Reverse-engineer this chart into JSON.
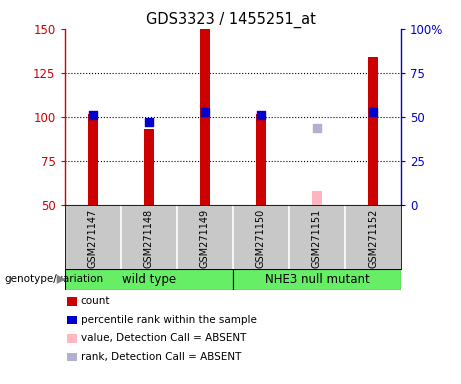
{
  "title": "GDS3323 / 1455251_at",
  "samples": [
    "GSM271147",
    "GSM271148",
    "GSM271149",
    "GSM271150",
    "GSM271151",
    "GSM271152"
  ],
  "red_bars": [
    102,
    93,
    150,
    102,
    null,
    134
  ],
  "blue_dots": [
    51,
    47,
    53,
    51,
    null,
    53
  ],
  "pink_bars": [
    null,
    null,
    null,
    null,
    58,
    null
  ],
  "lavender_dots": [
    null,
    null,
    null,
    null,
    44,
    null
  ],
  "ylim_left": [
    50,
    150
  ],
  "ylim_right": [
    0,
    100
  ],
  "yticks_left": [
    50,
    75,
    100,
    125,
    150
  ],
  "yticks_right": [
    0,
    25,
    50,
    75,
    100
  ],
  "left_color": "#CC0000",
  "right_color": "#0000CC",
  "bar_width": 0.18,
  "group_label": "genotype/variation",
  "wt_label": "wild type",
  "nhe_label": "NHE3 null mutant",
  "group_color": "#66EE66",
  "sample_bg": "#C8C8C8",
  "legend_items": [
    {
      "label": "count",
      "color": "#CC0000"
    },
    {
      "label": "percentile rank within the sample",
      "color": "#0000CC"
    },
    {
      "label": "value, Detection Call = ABSENT",
      "color": "#FFB6C1"
    },
    {
      "label": "rank, Detection Call = ABSENT",
      "color": "#B0B0D0"
    }
  ]
}
